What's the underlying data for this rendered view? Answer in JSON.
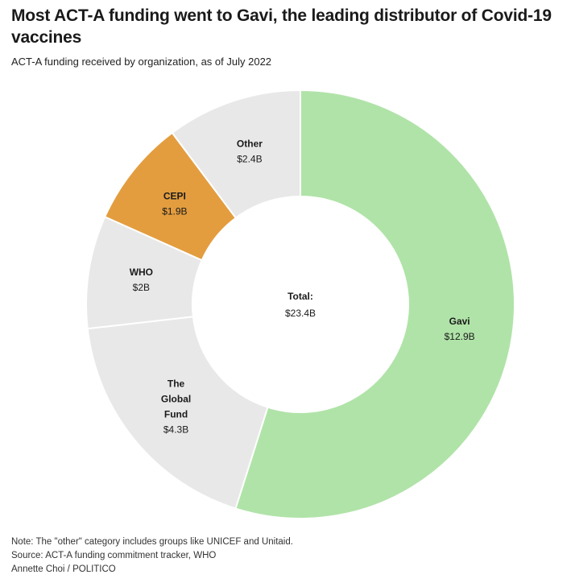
{
  "header": {
    "title": "Most ACT-A funding went to Gavi, the leading distributor of Covid-19 vaccines",
    "subtitle": "ACT-A funding received by organization, as of July 2022"
  },
  "chart_data": {
    "type": "pie",
    "donut": true,
    "title": "Most ACT-A funding went to Gavi, the leading distributor of Covid-19 vaccines",
    "subtitle": "ACT-A funding received by organization, as of July 2022",
    "center_label": "Total:",
    "center_value": "$23.4B",
    "total": 23.4,
    "unit": "USD billions",
    "slices": [
      {
        "name": "Gavi",
        "value": 12.9,
        "value_label": "$12.9B",
        "color": "#b0e3a8",
        "label_lines": [
          "Gavi"
        ]
      },
      {
        "name": "The Global Fund",
        "value": 4.3,
        "value_label": "$4.3B",
        "color": "#e8e8e8",
        "label_lines": [
          "The",
          "Global",
          "Fund"
        ]
      },
      {
        "name": "WHO",
        "value": 2.0,
        "value_label": "$2B",
        "color": "#e8e8e8",
        "label_lines": [
          "WHO"
        ]
      },
      {
        "name": "CEPI",
        "value": 1.9,
        "value_label": "$1.9B",
        "color": "#e39d3f",
        "label_lines": [
          "CEPI"
        ]
      },
      {
        "name": "Other",
        "value": 2.4,
        "value_label": "$2.4B",
        "color": "#e8e8e8",
        "label_lines": [
          "Other"
        ]
      }
    ]
  },
  "footer": {
    "note": "Note: The \"other\" category includes groups like UNICEF and Unitaid.",
    "source": "Source: ACT-A funding commitment tracker, WHO",
    "credit": "Annette Choi / POLITICO"
  }
}
